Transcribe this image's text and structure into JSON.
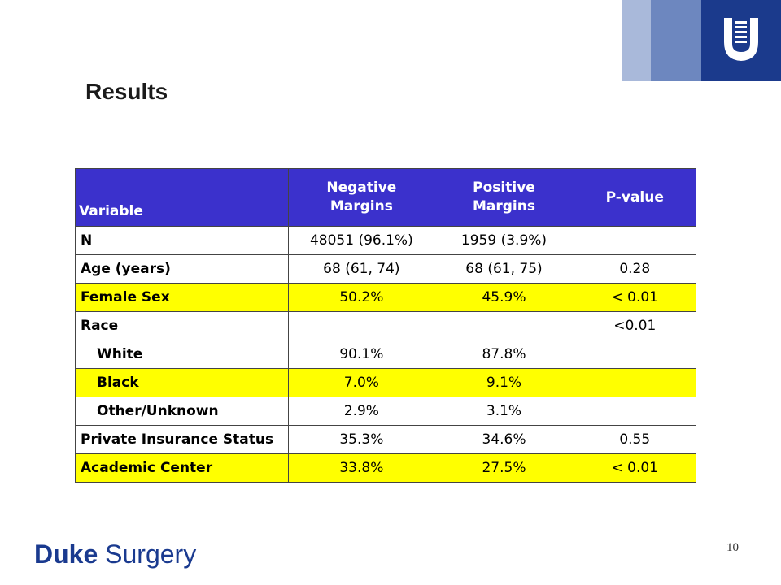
{
  "slide": {
    "title": "Results",
    "page_number": "10"
  },
  "brand": {
    "name_bold": "Duke",
    "name_rest": "Surgery",
    "colors": {
      "primary": "#1b3a8c",
      "mid": "#6d87bf",
      "light": "#a9b9da"
    },
    "logo_icon": "duke-shield-icon"
  },
  "table": {
    "headers": {
      "variable": "Variable",
      "negative": "Negative Margins",
      "positive": "Positive Margins",
      "pvalue": "P-value"
    },
    "header_color": "#3b31cc",
    "highlight_color": "#ffff00",
    "rows": [
      {
        "label": "N",
        "neg": "48051 (96.1%)",
        "pos": "1959 (3.9%)",
        "p": ""
      },
      {
        "label": "Age (years)",
        "neg": "68 (61, 74)",
        "pos": "68 (61, 75)",
        "p": "0.28"
      },
      {
        "label": "Female Sex",
        "neg": "50.2%",
        "pos": "45.9%",
        "p": "< 0.01"
      },
      {
        "label": "Race",
        "neg": "",
        "pos": "",
        "p": "<0.01"
      },
      {
        "label": "White",
        "neg": "90.1%",
        "pos": "87.8%",
        "p": ""
      },
      {
        "label": "Black",
        "neg": "7.0%",
        "pos": "9.1%",
        "p": ""
      },
      {
        "label": "Other/Unknown",
        "neg": "2.9%",
        "pos": "3.1%",
        "p": ""
      },
      {
        "label": "Private Insurance Status",
        "neg": "35.3%",
        "pos": "34.6%",
        "p": "0.55"
      },
      {
        "label": "Academic Center",
        "neg": "33.8%",
        "pos": "27.5%",
        "p": "< 0.01"
      }
    ]
  }
}
